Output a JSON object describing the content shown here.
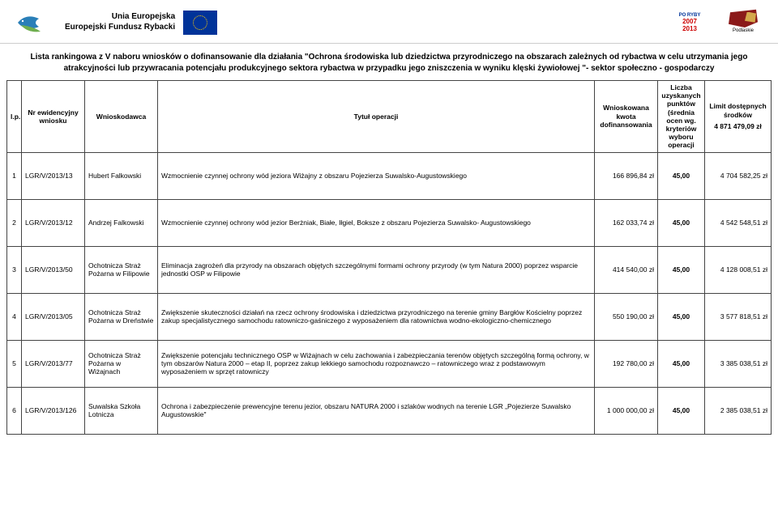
{
  "header": {
    "eu_line1": "Unia Europejska",
    "eu_line2": "Europejski Fundusz Rybacki",
    "ryby_label": "PO RYBY",
    "ryby_years": "2007\n2013",
    "podlaskie": "Podlaskie"
  },
  "title": "Lista rankingowa z V naboru wniosków o dofinansowanie dla działania \"Ochrona środowiska lub dziedzictwa przyrodniczego na obszarach zależnych od rybactwa w celu utrzymania jego atrakcyjności lub przywracania potencjału produkcyjnego sektora rybactwa w przypadku jego zniszczenia w wyniku klęski żywiołowej \"- sektor społeczno - gospodarczy",
  "columns": {
    "lp": "l.p.",
    "nr": "Nr ewidencyjny wniosku",
    "wn": "Wnioskodawca",
    "ty": "Tytuł operacji",
    "kw": "Wnioskowana kwota dofinansowania",
    "pk": "Liczba uzyskanych punktów (średnia ocen wg. kryteriów wyboru operacji",
    "lm_top": "Limit dostępnych środków",
    "lm_bot": "4 871 479,09 zł"
  },
  "rows": [
    {
      "lp": "1",
      "nr": "LGR/V/2013/13",
      "wn": "Hubert Falkowski",
      "ty": "Wzmocnienie czynnej ochrony wód jeziora Wiżajny z obszaru Pojezierza Suwalsko-Augustowskiego",
      "kw": "166 896,84 zł",
      "pk": "45,00",
      "lm": "4 704 582,25 zł"
    },
    {
      "lp": "2",
      "nr": "LGR/V/2013/12",
      "wn": "Andrzej Falkowski",
      "ty": "Wzmocnienie czynnej ochrony wód jezior Berżniak, Białe, Iłgiel, Boksze z obszaru Pojezierza Suwalsko- Augustowskiego",
      "kw": "162 033,74 zł",
      "pk": "45,00",
      "lm": "4 542 548,51 zł"
    },
    {
      "lp": "3",
      "nr": "LGR/V/2013/50",
      "wn": "Ochotnicza Straż Pożarna w Filipowie",
      "ty": "Eliminacja zagrożeń dla przyrody na obszarach objętych szczególnymi formami ochrony przyrody (w tym Natura 2000) poprzez wsparcie jednostki OSP w Filipowie",
      "kw": "414 540,00 zł",
      "pk": "45,00",
      "lm": "4 128 008,51 zł"
    },
    {
      "lp": "4",
      "nr": "LGR/V/2013/05",
      "wn": "Ochotnicza Straż Pożarna w Dreństwie",
      "ty": "Zwiększenie skuteczności działań na rzecz ochrony środowiska i dziedzictwa przyrodniczego na terenie gminy Bargłów Kościelny poprzez zakup specjalistycznego samochodu ratowniczo-gaśniczego z wyposażeniem dla ratownictwa wodno-ekologiczno-chemicznego",
      "kw": "550 190,00 zł",
      "pk": "45,00",
      "lm": "3 577 818,51 zł"
    },
    {
      "lp": "5",
      "nr": "LGR/V/2013/77",
      "wn": "Ochotnicza Straż Pożarna w Wiżajnach",
      "ty": "Zwiększenie potencjału technicznego OSP w Wiżajnach w celu zachowania i zabezpieczania terenów objętych szczególną formą ochrony, w tym obszarów Natura 2000 – etap II, poprzez zakup lekkiego samochodu rozpoznawczo – ratowniczego wraz z podstawowym wyposażeniem w sprzęt ratowniczy",
      "kw": "192 780,00 zł",
      "pk": "45,00",
      "lm": "3 385 038,51 zł"
    },
    {
      "lp": "6",
      "nr": "LGR/V/2013/126",
      "wn": "Suwalska Szkoła Lotnicza",
      "ty": "Ochrona i zabezpieczenie prewencyjne terenu jezior, obszaru NATURA 2000 i szlaków wodnych na terenie LGR „Pojezierze Suwalsko Augustowskie\"",
      "kw": "1 000 000,00 zł",
      "pk": "45,00",
      "lm": "2 385 038,51 zł"
    }
  ],
  "colors": {
    "border": "#444444",
    "text": "#000000",
    "eu_blue": "#003399",
    "podlaskie_red": "#8b1a1a"
  }
}
